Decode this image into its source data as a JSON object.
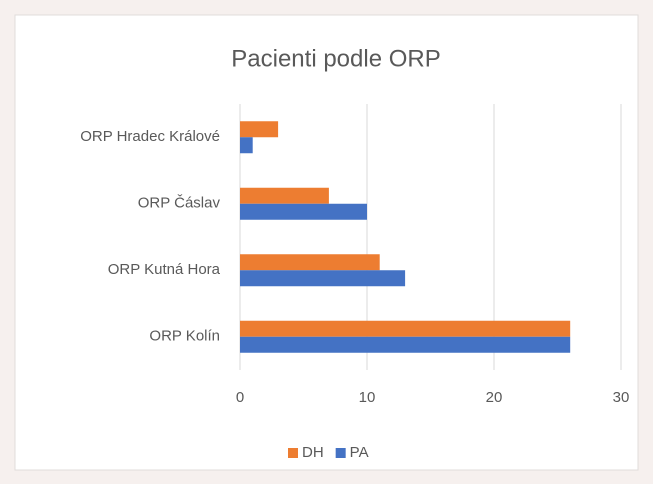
{
  "chart_data": {
    "type": "barh",
    "title": "Pacienti podle ORP",
    "categories": [
      "ORP Hradec Králové",
      "ORP Čáslav",
      "ORP Kutná Hora",
      "ORP Kolín"
    ],
    "series": [
      {
        "name": "DH",
        "color": "#ed7d31",
        "values": [
          3,
          7,
          11,
          26
        ]
      },
      {
        "name": "PA",
        "color": "#4472c4",
        "values": [
          1,
          10,
          13,
          26
        ]
      }
    ],
    "xlim": [
      0,
      30
    ],
    "xticks": [
      0,
      10,
      20,
      30
    ],
    "grid": true,
    "legend": "bottom"
  }
}
